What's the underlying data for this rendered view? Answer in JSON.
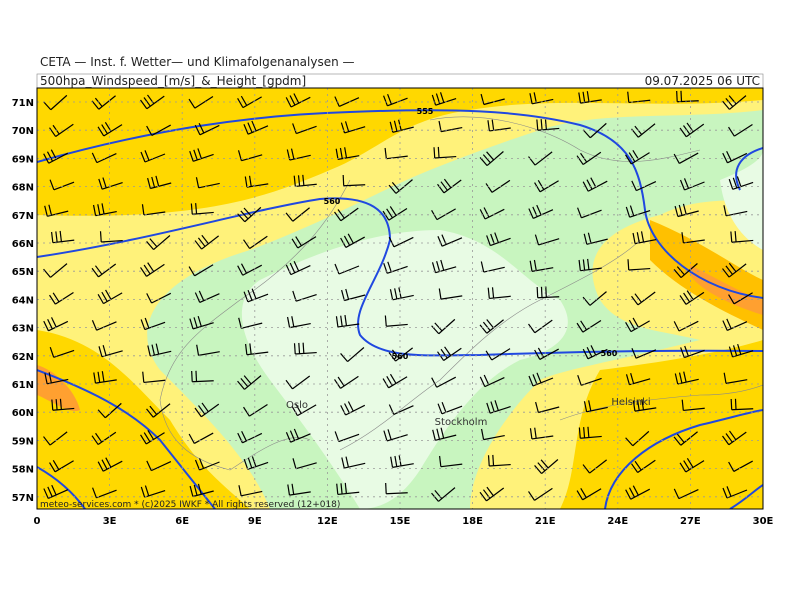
{
  "header": {
    "title": "CETA — Inst. f. Wetter— und Klimafolgenanalysen —",
    "product": "500hpa_Windspeed_[m/s]_&_Height_[gpdm]",
    "valid": "09.07.2025 06 UTC"
  },
  "map": {
    "lat_labels": [
      "71N",
      "70N",
      "69N",
      "68N",
      "67N",
      "66N",
      "65N",
      "64N",
      "63N",
      "62N",
      "61N",
      "60N",
      "59N",
      "58N",
      "57N"
    ],
    "lon_labels": [
      "0",
      "3E",
      "6E",
      "9E",
      "12E",
      "15E",
      "18E",
      "21E",
      "24E",
      "27E",
      "30E"
    ],
    "contour_labels": [
      "555",
      "560",
      "560",
      "560"
    ],
    "cities": [
      "Oslo",
      "Stockholm",
      "Helsinki"
    ],
    "credit": "meteo-services.com * (c)2025 IWKF * All rights reserved (12+018)"
  }
}
